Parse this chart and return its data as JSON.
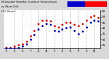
{
  "bg_color": "#d8d8d8",
  "plot_bg_color": "#ffffff",
  "ylim": [
    22,
    56
  ],
  "y_ticks": [
    25,
    30,
    35,
    40,
    45,
    50,
    55
  ],
  "legend_temp_color": "#ff0000",
  "legend_wind_color": "#0000cc",
  "temp_data_x": [
    1,
    2,
    3,
    4,
    5,
    6,
    7,
    8,
    9,
    10,
    11,
    12,
    13,
    14,
    15,
    16,
    17,
    18,
    19,
    20,
    21,
    22,
    23,
    24
  ],
  "temp_data_y": [
    23,
    23,
    24,
    25,
    26,
    28,
    33,
    38,
    44,
    47,
    47,
    46,
    42,
    41,
    43,
    45,
    45,
    43,
    42,
    44,
    47,
    50,
    51,
    49
  ],
  "wind_data_x": [
    1,
    2,
    3,
    4,
    5,
    6,
    7,
    8,
    9,
    10,
    11,
    12,
    13,
    14,
    15,
    16,
    17,
    18,
    19,
    20,
    21,
    22,
    23,
    24
  ],
  "wind_data_y": [
    22,
    22,
    22,
    23,
    24,
    26,
    30,
    34,
    39,
    42,
    44,
    43,
    38,
    37,
    39,
    40,
    41,
    38,
    35,
    37,
    41,
    45,
    47,
    46
  ],
  "grid_color": "#999999",
  "grid_positions": [
    3,
    5,
    7,
    9,
    11,
    13,
    15,
    17,
    19,
    21,
    23
  ],
  "x_tick_positions": [
    1,
    3,
    5,
    7,
    9,
    11,
    13,
    15,
    17,
    19,
    21,
    23
  ],
  "x_tick_labels": [
    "1",
    "3",
    "5",
    "7",
    "9",
    "11",
    "1",
    "3",
    "5",
    "7",
    "9",
    "11"
  ]
}
